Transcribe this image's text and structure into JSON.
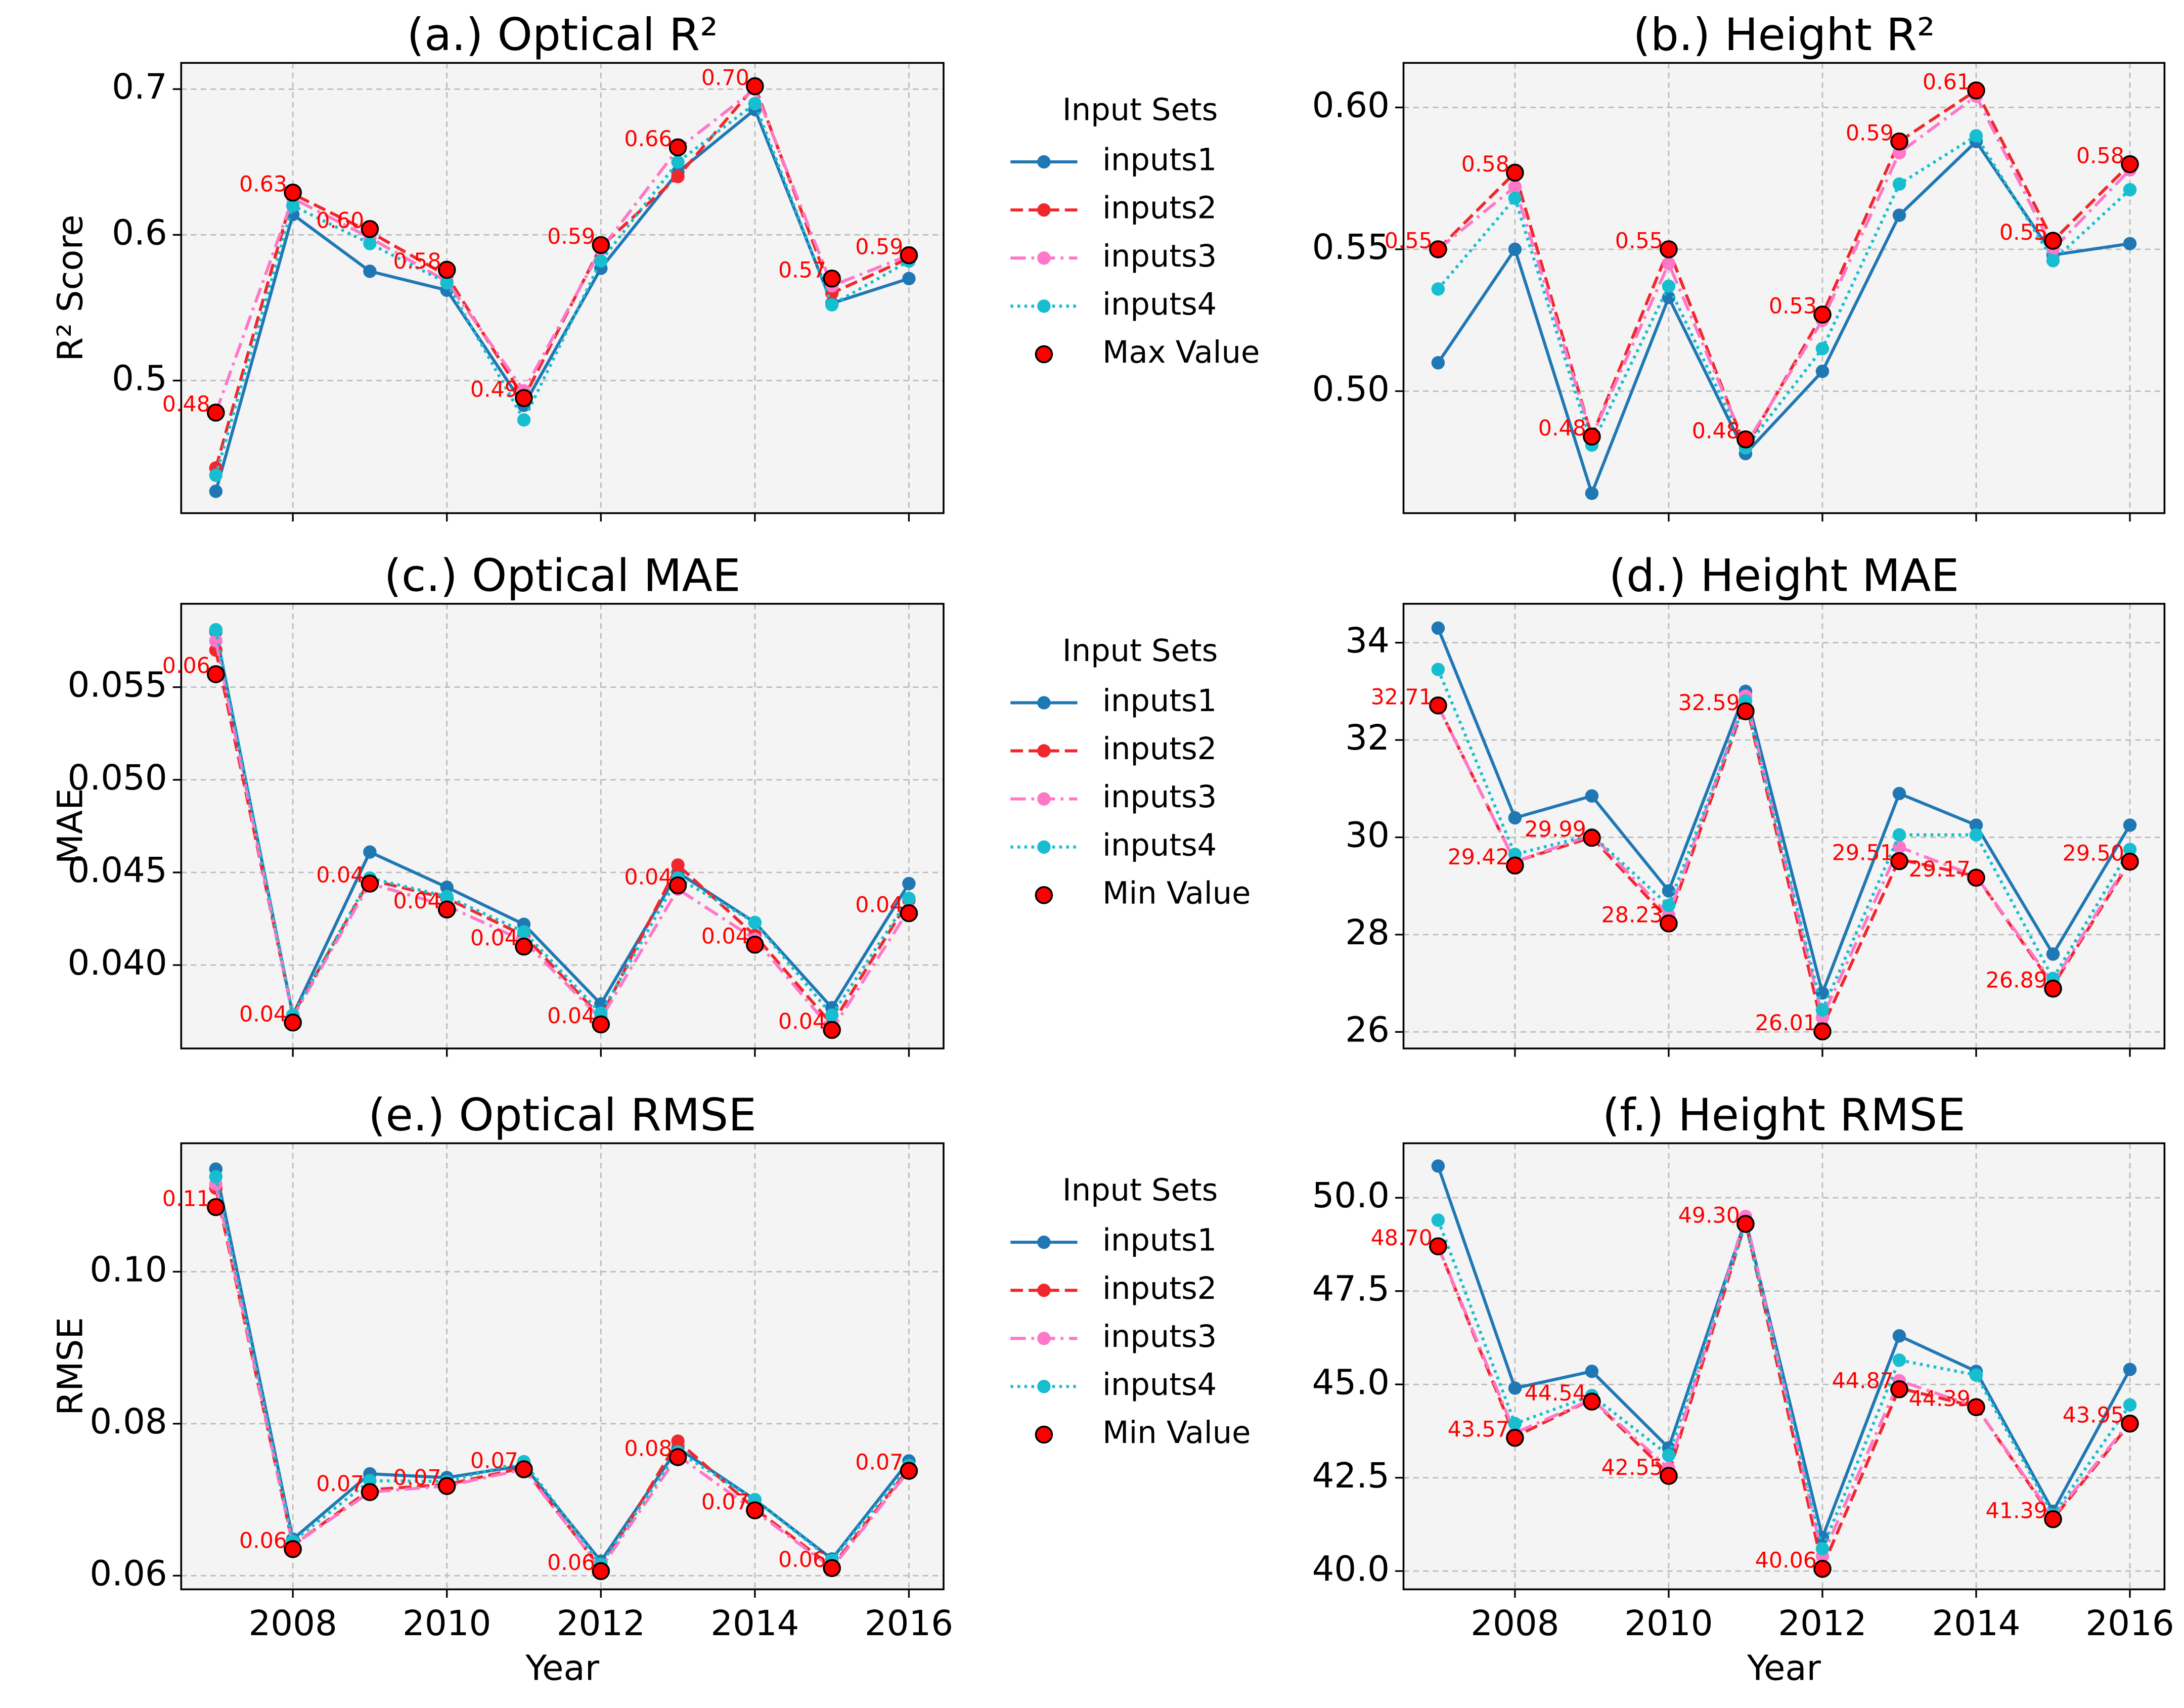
{
  "chart_data": [
    {
      "type": "line",
      "title": "(a.) Optical R²",
      "ylabel": "R² Score",
      "x": [
        2007,
        2008,
        2009,
        2010,
        2011,
        2012,
        2013,
        2014,
        2015,
        2016
      ],
      "xlim": [
        2006.55,
        2016.45
      ],
      "xticks": [
        2008,
        2010,
        2012,
        2014,
        2016
      ],
      "xtick_labels": false,
      "ylim": [
        0.409,
        0.718
      ],
      "yticks": [
        0.5,
        0.6,
        0.7
      ],
      "grid": true,
      "legend": "right-outside",
      "legend_title": "Input Sets",
      "series": [
        {
          "name": "inputs1",
          "color": "#1f77b4",
          "style": "solid",
          "values": [
            0.424,
            0.614,
            0.575,
            0.562,
            0.483,
            0.577,
            0.643,
            0.686,
            0.553,
            0.57
          ]
        },
        {
          "name": "inputs2",
          "color": "#f0282d",
          "style": "dashed",
          "values": [
            0.44,
            0.628,
            0.602,
            0.572,
            0.488,
            0.592,
            0.64,
            0.702,
            0.56,
            0.584
          ]
        },
        {
          "name": "inputs3",
          "color": "#ff77c8",
          "style": "dashdot",
          "values": [
            0.478,
            0.625,
            0.598,
            0.568,
            0.493,
            0.59,
            0.659,
            0.7,
            0.565,
            0.586
          ]
        },
        {
          "name": "inputs4",
          "color": "#17becf",
          "style": "dotted",
          "values": [
            0.435,
            0.62,
            0.594,
            0.567,
            0.473,
            0.582,
            0.65,
            0.69,
            0.552,
            0.582
          ]
        },
        {
          "name": "Max Value",
          "color": "#ff0000",
          "style": "markers",
          "values": [
            0.478,
            0.629,
            0.604,
            0.576,
            0.488,
            0.593,
            0.66,
            0.702,
            0.57,
            0.586
          ],
          "value_labels": [
            "0.48",
            "0.63",
            "0.60",
            "0.58",
            "0.49",
            "0.59",
            "0.66",
            "0.70",
            "0.57",
            "0.59"
          ]
        }
      ]
    },
    {
      "type": "line",
      "title": "(b.) Height R²",
      "x": [
        2007,
        2008,
        2009,
        2010,
        2011,
        2012,
        2013,
        2014,
        2015,
        2016
      ],
      "xlim": [
        2006.55,
        2016.45
      ],
      "xticks": [
        2008,
        2010,
        2012,
        2014,
        2016
      ],
      "xtick_labels": false,
      "ylim": [
        0.457,
        0.6157
      ],
      "yticks": [
        {
          "value": 0.5,
          "label": "0.50"
        },
        {
          "value": 0.55,
          "label": "0.55"
        },
        {
          "value": 0.6,
          "label": "0.60"
        }
      ],
      "grid": true,
      "series": [
        {
          "name": "inputs1",
          "color": "#1f77b4",
          "style": "solid",
          "values": [
            0.51,
            0.55,
            0.464,
            0.533,
            0.478,
            0.507,
            0.562,
            0.588,
            0.548,
            0.552
          ]
        },
        {
          "name": "inputs2",
          "color": "#f0282d",
          "style": "dashed",
          "values": [
            0.55,
            0.577,
            0.484,
            0.55,
            0.48,
            0.527,
            0.588,
            0.606,
            0.553,
            0.58
          ]
        },
        {
          "name": "inputs3",
          "color": "#ff77c8",
          "style": "dashdot",
          "values": [
            0.55,
            0.572,
            0.484,
            0.545,
            0.481,
            0.525,
            0.584,
            0.604,
            0.55,
            0.578
          ]
        },
        {
          "name": "inputs4",
          "color": "#17becf",
          "style": "dotted",
          "values": [
            0.536,
            0.568,
            0.481,
            0.537,
            0.48,
            0.515,
            0.573,
            0.59,
            0.546,
            0.571
          ]
        },
        {
          "name": "Max Value",
          "color": "#ff0000",
          "style": "markers",
          "values": [
            0.55,
            0.577,
            0.484,
            0.55,
            0.483,
            0.527,
            0.588,
            0.606,
            0.553,
            0.58
          ],
          "value_labels": [
            "0.55",
            "0.58",
            "0.48",
            "0.55",
            "0.48",
            "0.53",
            "0.59",
            "0.61",
            "0.55",
            "0.58"
          ]
        }
      ]
    },
    {
      "type": "line",
      "title": "(c.) Optical MAE",
      "ylabel": "MAE",
      "x": [
        2007,
        2008,
        2009,
        2010,
        2011,
        2012,
        2013,
        2014,
        2015,
        2016
      ],
      "xlim": [
        2006.55,
        2016.45
      ],
      "xticks": [
        2008,
        2010,
        2012,
        2014,
        2016
      ],
      "xtick_labels": false,
      "ylim": [
        0.0355,
        0.0595
      ],
      "yticks": [
        {
          "value": 0.04,
          "label": "0.040"
        },
        {
          "value": 0.045,
          "label": "0.045"
        },
        {
          "value": 0.05,
          "label": "0.050"
        },
        {
          "value": 0.055,
          "label": "0.055"
        }
      ],
      "grid": true,
      "legend": "right-outside",
      "legend_title": "Input Sets",
      "series": [
        {
          "name": "inputs1",
          "color": "#1f77b4",
          "style": "solid",
          "values": [
            0.058,
            0.0373,
            0.0461,
            0.0442,
            0.0422,
            0.0379,
            0.045,
            0.0423,
            0.0377,
            0.0444
          ]
        },
        {
          "name": "inputs2",
          "color": "#f0282d",
          "style": "dashed",
          "values": [
            0.057,
            0.0373,
            0.0446,
            0.0436,
            0.0416,
            0.0372,
            0.0454,
            0.0416,
            0.0368,
            0.0435
          ]
        },
        {
          "name": "inputs3",
          "color": "#ff77c8",
          "style": "dashdot",
          "values": [
            0.0575,
            0.0372,
            0.0444,
            0.0432,
            0.0413,
            0.0371,
            0.0441,
            0.0414,
            0.0365,
            0.043
          ]
        },
        {
          "name": "inputs4",
          "color": "#17becf",
          "style": "dotted",
          "values": [
            0.0581,
            0.0373,
            0.0447,
            0.0437,
            0.0418,
            0.0374,
            0.0447,
            0.0423,
            0.0373,
            0.0436
          ]
        },
        {
          "name": "Min Value",
          "color": "#ff0000",
          "style": "markers",
          "values": [
            0.0557,
            0.0369,
            0.0444,
            0.043,
            0.041,
            0.0368,
            0.0443,
            0.0411,
            0.0365,
            0.0428
          ],
          "value_labels": [
            "0.06",
            "0.04",
            "0.04",
            "0.04",
            "0.04",
            "0.04",
            "0.04",
            "0.04",
            "0.04",
            "0.04"
          ]
        }
      ]
    },
    {
      "type": "line",
      "title": "(d.) Height MAE",
      "x": [
        2007,
        2008,
        2009,
        2010,
        2011,
        2012,
        2013,
        2014,
        2015,
        2016
      ],
      "xlim": [
        2006.55,
        2016.45
      ],
      "xticks": [
        2008,
        2010,
        2012,
        2014,
        2016
      ],
      "xtick_labels": false,
      "ylim": [
        25.66,
        34.8
      ],
      "yticks": [
        26,
        28,
        30,
        32,
        34
      ],
      "grid": true,
      "series": [
        {
          "name": "inputs1",
          "color": "#1f77b4",
          "style": "solid",
          "values": [
            34.3,
            30.4,
            30.85,
            28.9,
            33.0,
            26.8,
            30.9,
            30.25,
            27.6,
            30.25
          ]
        },
        {
          "name": "inputs2",
          "color": "#f0282d",
          "style": "dashed",
          "values": [
            32.7,
            29.5,
            30.0,
            28.3,
            32.8,
            26.1,
            29.55,
            29.2,
            26.95,
            29.5
          ]
        },
        {
          "name": "inputs3",
          "color": "#ff77c8",
          "style": "dashdot",
          "values": [
            32.7,
            29.5,
            30.05,
            28.4,
            32.9,
            26.3,
            29.8,
            29.2,
            27.0,
            29.55
          ]
        },
        {
          "name": "inputs4",
          "color": "#17becf",
          "style": "dotted",
          "values": [
            33.45,
            29.65,
            30.05,
            28.6,
            32.8,
            26.45,
            30.05,
            30.05,
            27.1,
            29.75
          ]
        },
        {
          "name": "Min Value",
          "color": "#ff0000",
          "style": "markers",
          "values": [
            32.71,
            29.42,
            29.99,
            28.23,
            32.59,
            26.01,
            29.51,
            29.17,
            26.89,
            29.5
          ],
          "value_labels": [
            "32.71",
            "29.42",
            "29.99",
            "28.23",
            "32.59",
            "26.01",
            "29.51",
            "29.17",
            "26.89",
            "29.50"
          ]
        }
      ]
    },
    {
      "type": "line",
      "title": "(e.) Optical RMSE",
      "ylabel": "RMSE",
      "xlabel": "Year",
      "x": [
        2007,
        2008,
        2009,
        2010,
        2011,
        2012,
        2013,
        2014,
        2015,
        2016
      ],
      "xlim": [
        2006.55,
        2016.45
      ],
      "xticks": [
        2008,
        2010,
        2012,
        2014,
        2016
      ],
      "xtick_labels": true,
      "ylim": [
        0.0582,
        0.1169
      ],
      "yticks": [
        {
          "value": 0.06,
          "label": "0.06"
        },
        {
          "value": 0.08,
          "label": "0.08"
        },
        {
          "value": 0.1,
          "label": "0.10"
        }
      ],
      "grid": true,
      "legend": "right-outside",
      "legend_title": "Input Sets",
      "series": [
        {
          "name": "inputs1",
          "color": "#1f77b4",
          "style": "solid",
          "values": [
            0.1135,
            0.0648,
            0.0734,
            0.0729,
            0.0745,
            0.0619,
            0.0768,
            0.07,
            0.0622,
            0.0751
          ]
        },
        {
          "name": "inputs2",
          "color": "#f0282d",
          "style": "dashed",
          "values": [
            0.111,
            0.064,
            0.0713,
            0.072,
            0.0742,
            0.0609,
            0.0777,
            0.0688,
            0.0612,
            0.0741
          ]
        },
        {
          "name": "inputs3",
          "color": "#ff77c8",
          "style": "dashdot",
          "values": [
            0.1115,
            0.064,
            0.071,
            0.0718,
            0.074,
            0.061,
            0.0758,
            0.0685,
            0.061,
            0.0738
          ]
        },
        {
          "name": "inputs4",
          "color": "#17becf",
          "style": "dotted",
          "values": [
            0.1125,
            0.0645,
            0.0725,
            0.0724,
            0.075,
            0.0615,
            0.0763,
            0.07,
            0.062,
            0.0745
          ]
        },
        {
          "name": "Min Value",
          "color": "#ff0000",
          "style": "markers",
          "values": [
            0.1085,
            0.0635,
            0.071,
            0.0718,
            0.074,
            0.0606,
            0.0756,
            0.0686,
            0.061,
            0.0738
          ],
          "value_labels": [
            "0.11",
            "0.06",
            "0.07",
            "0.07",
            "0.07",
            "0.06",
            "0.08",
            "0.07",
            "0.06",
            "0.07"
          ]
        }
      ]
    },
    {
      "type": "line",
      "title": "(f.) Height RMSE",
      "xlabel": "Year",
      "x": [
        2007,
        2008,
        2009,
        2010,
        2011,
        2012,
        2013,
        2014,
        2015,
        2016
      ],
      "xlim": [
        2006.55,
        2016.45
      ],
      "xticks": [
        2008,
        2010,
        2012,
        2014,
        2016
      ],
      "xtick_labels": true,
      "ylim": [
        39.51,
        51.46
      ],
      "yticks": [
        {
          "value": 40,
          "label": "40.0"
        },
        {
          "value": 42.5,
          "label": "42.5"
        },
        {
          "value": 45,
          "label": "45.0"
        },
        {
          "value": 47.5,
          "label": "47.5"
        },
        {
          "value": 50,
          "label": "50.0"
        }
      ],
      "grid": true,
      "series": [
        {
          "name": "inputs1",
          "color": "#1f77b4",
          "style": "solid",
          "values": [
            50.85,
            44.9,
            45.35,
            43.3,
            49.4,
            40.9,
            46.3,
            45.35,
            41.6,
            45.4
          ]
        },
        {
          "name": "inputs2",
          "color": "#f0282d",
          "style": "dashed",
          "values": [
            48.7,
            43.6,
            44.6,
            42.6,
            49.35,
            40.1,
            44.9,
            44.4,
            41.4,
            43.95
          ]
        },
        {
          "name": "inputs3",
          "color": "#ff77c8",
          "style": "dashdot",
          "values": [
            48.7,
            43.7,
            44.6,
            42.75,
            49.5,
            40.4,
            45.1,
            44.4,
            41.45,
            44.0
          ]
        },
        {
          "name": "inputs4",
          "color": "#17becf",
          "style": "dotted",
          "values": [
            49.4,
            43.95,
            44.7,
            43.1,
            49.3,
            40.6,
            45.65,
            45.25,
            41.5,
            44.45
          ]
        },
        {
          "name": "Min Value",
          "color": "#ff0000",
          "style": "markers",
          "values": [
            48.7,
            43.57,
            44.54,
            42.55,
            49.3,
            40.06,
            44.87,
            44.39,
            41.39,
            43.95
          ],
          "value_labels": [
            "48.70",
            "43.57",
            "44.54",
            "42.55",
            "49.30",
            "40.06",
            "44.87",
            "44.39",
            "41.39",
            "43.95"
          ]
        }
      ]
    }
  ]
}
